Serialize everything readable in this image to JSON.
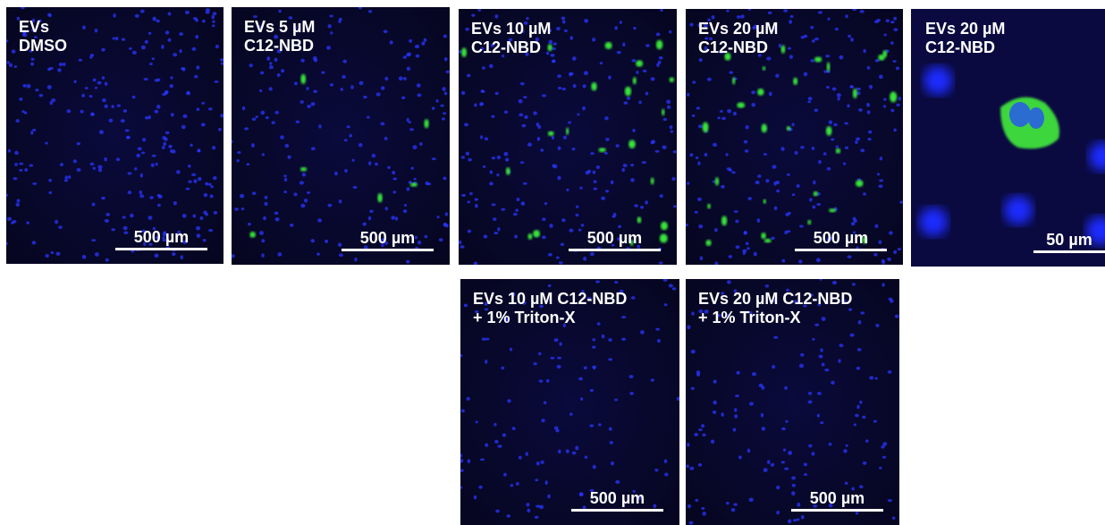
{
  "panels": [
    {
      "label": [
        "EVs",
        "DMSO"
      ],
      "scale_bar": "500 µm"
    },
    {
      "label": [
        "EVs 5 µM",
        "C12-NBD"
      ],
      "scale_bar": "500 µm"
    },
    {
      "label": [
        "EVs 10 µM",
        "C12-NBD"
      ],
      "scale_bar": "500 µm"
    },
    {
      "label": [
        "EVs 20 µM",
        "C12-NBD"
      ],
      "scale_bar": "500 µm"
    },
    {
      "label": [
        "EVs 20 µM",
        "C12-NBD"
      ],
      "scale_bar": "50 µm"
    },
    {
      "label": [
        "EVs 10 µM C12-NBD",
        "+ 1% Triton-X"
      ],
      "scale_bar": "500 µm"
    },
    {
      "label": [
        "EVs 20 µM C12-NBD",
        "+ 1% Triton-X"
      ],
      "scale_bar": "500 µm"
    }
  ]
}
